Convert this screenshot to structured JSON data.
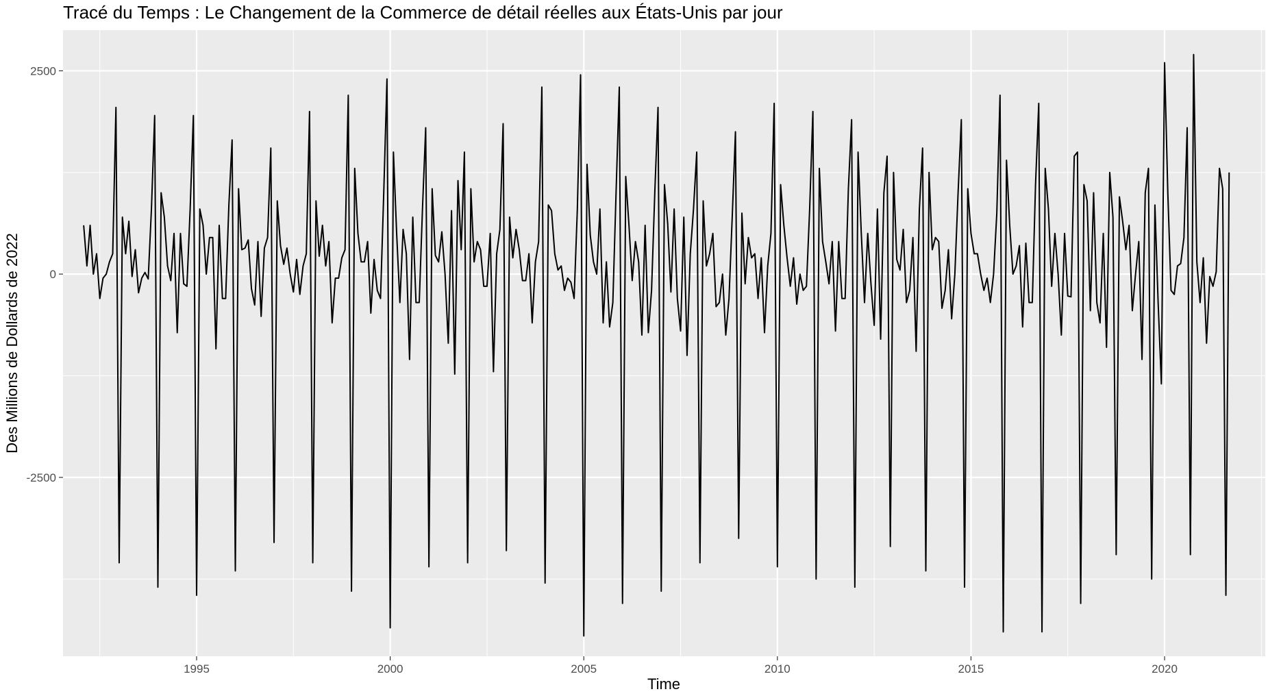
{
  "chart_data": {
    "type": "line",
    "title": "Tracé du Temps : Le Changement de la Commerce de détail réelles aux États-Unis par jour",
    "xlabel": "Time",
    "ylabel": "Des Millions de Dollards de 2022",
    "xlim": [
      1991.55,
      2022.6
    ],
    "ylim": [
      -4700,
      3000
    ],
    "x_ticks": [
      1995,
      2000,
      2005,
      2010,
      2015,
      2020
    ],
    "x_tick_labels": [
      "1995",
      "2000",
      "2005",
      "2010",
      "2015",
      "2020"
    ],
    "y_ticks": [
      2500,
      0,
      -2500
    ],
    "y_tick_labels": [
      "2500",
      "0",
      "-2500"
    ],
    "grid": true,
    "colors": {
      "panel": "#ebebeb",
      "grid": "#ffffff",
      "line": "#000000"
    },
    "series": [
      {
        "start_year": 1992,
        "start_month": 2,
        "frequency": "monthly",
        "values": [
          600,
          100,
          600,
          0,
          250,
          -300,
          -50,
          0,
          150,
          250,
          2050,
          -3550,
          700,
          250,
          650,
          -30,
          300,
          -230,
          -50,
          20,
          -60,
          800,
          1950,
          -3850,
          1000,
          700,
          100,
          -80,
          500,
          -720,
          500,
          -120,
          -150,
          800,
          1950,
          -3950,
          800,
          600,
          0,
          450,
          450,
          -920,
          600,
          -300,
          -300,
          850,
          1650,
          -3650,
          1050,
          300,
          320,
          420,
          -180,
          -380,
          400,
          -520,
          320,
          450,
          1550,
          -3300,
          900,
          350,
          120,
          320,
          0,
          -220,
          180,
          -250,
          100,
          250,
          2000,
          -3550,
          900,
          220,
          600,
          100,
          400,
          -600,
          -50,
          -50,
          200,
          300,
          2200,
          -3900,
          1300,
          500,
          150,
          150,
          400,
          -480,
          180,
          -200,
          -300,
          1000,
          2400,
          -4350,
          1500,
          500,
          -350,
          550,
          250,
          -1050,
          700,
          -350,
          -350,
          800,
          1800,
          -3600,
          1050,
          230,
          150,
          520,
          0,
          -850,
          780,
          -1230,
          1150,
          300,
          1500,
          -3550,
          1050,
          150,
          400,
          300,
          -150,
          -150,
          500,
          -1200,
          250,
          550,
          1850,
          -3400,
          700,
          200,
          550,
          300,
          -80,
          -80,
          250,
          -600,
          150,
          400,
          2300,
          -3800,
          850,
          780,
          250,
          50,
          100,
          -200,
          -50,
          -100,
          -300,
          800,
          2450,
          -4450,
          1350,
          480,
          150,
          0,
          800,
          -600,
          150,
          -650,
          -350,
          1000,
          2300,
          -4050,
          1200,
          600,
          -80,
          400,
          150,
          -750,
          600,
          -720,
          -200,
          1000,
          2050,
          -3900,
          1100,
          620,
          -220,
          800,
          -300,
          -700,
          700,
          -1000,
          250,
          800,
          1500,
          -3550,
          900,
          100,
          250,
          500,
          -400,
          -350,
          0,
          -750,
          -300,
          700,
          1750,
          -3250,
          750,
          -120,
          450,
          200,
          250,
          -300,
          200,
          -720,
          100,
          500,
          2100,
          -3600,
          1100,
          600,
          200,
          -150,
          200,
          -370,
          0,
          -200,
          -150,
          800,
          2000,
          -3750,
          1300,
          400,
          150,
          -120,
          400,
          -700,
          400,
          -300,
          -300,
          1050,
          1900,
          -3850,
          1500,
          500,
          -350,
          500,
          -120,
          -630,
          800,
          -800,
          1000,
          1450,
          -3350,
          1250,
          180,
          50,
          550,
          -350,
          -200,
          450,
          -950,
          800,
          1550,
          -3650,
          1250,
          300,
          450,
          400,
          -420,
          -200,
          300,
          -550,
          0,
          1000,
          1900,
          -3850,
          1050,
          500,
          250,
          250,
          0,
          -200,
          -50,
          -350,
          0,
          750,
          2200,
          -4400,
          1400,
          600,
          0,
          100,
          350,
          -650,
          380,
          -350,
          -350,
          1100,
          2100,
          -4400,
          1300,
          800,
          -150,
          500,
          0,
          -750,
          500,
          -270,
          -280,
          1450,
          1500,
          -4050,
          1100,
          900,
          -450,
          1000,
          -350,
          -600,
          500,
          -900,
          1250,
          700,
          -3450,
          950,
          650,
          300,
          600,
          -450,
          0,
          400,
          -1050,
          1000,
          1300,
          -3750,
          850,
          -350,
          -1350,
          2600,
          1000,
          -200,
          -250,
          100,
          130,
          450,
          1800,
          -3450,
          2700,
          150,
          -350,
          200,
          -850,
          -30,
          -150,
          30,
          1300,
          1050,
          -3950,
          1250
        ]
      }
    ]
  }
}
